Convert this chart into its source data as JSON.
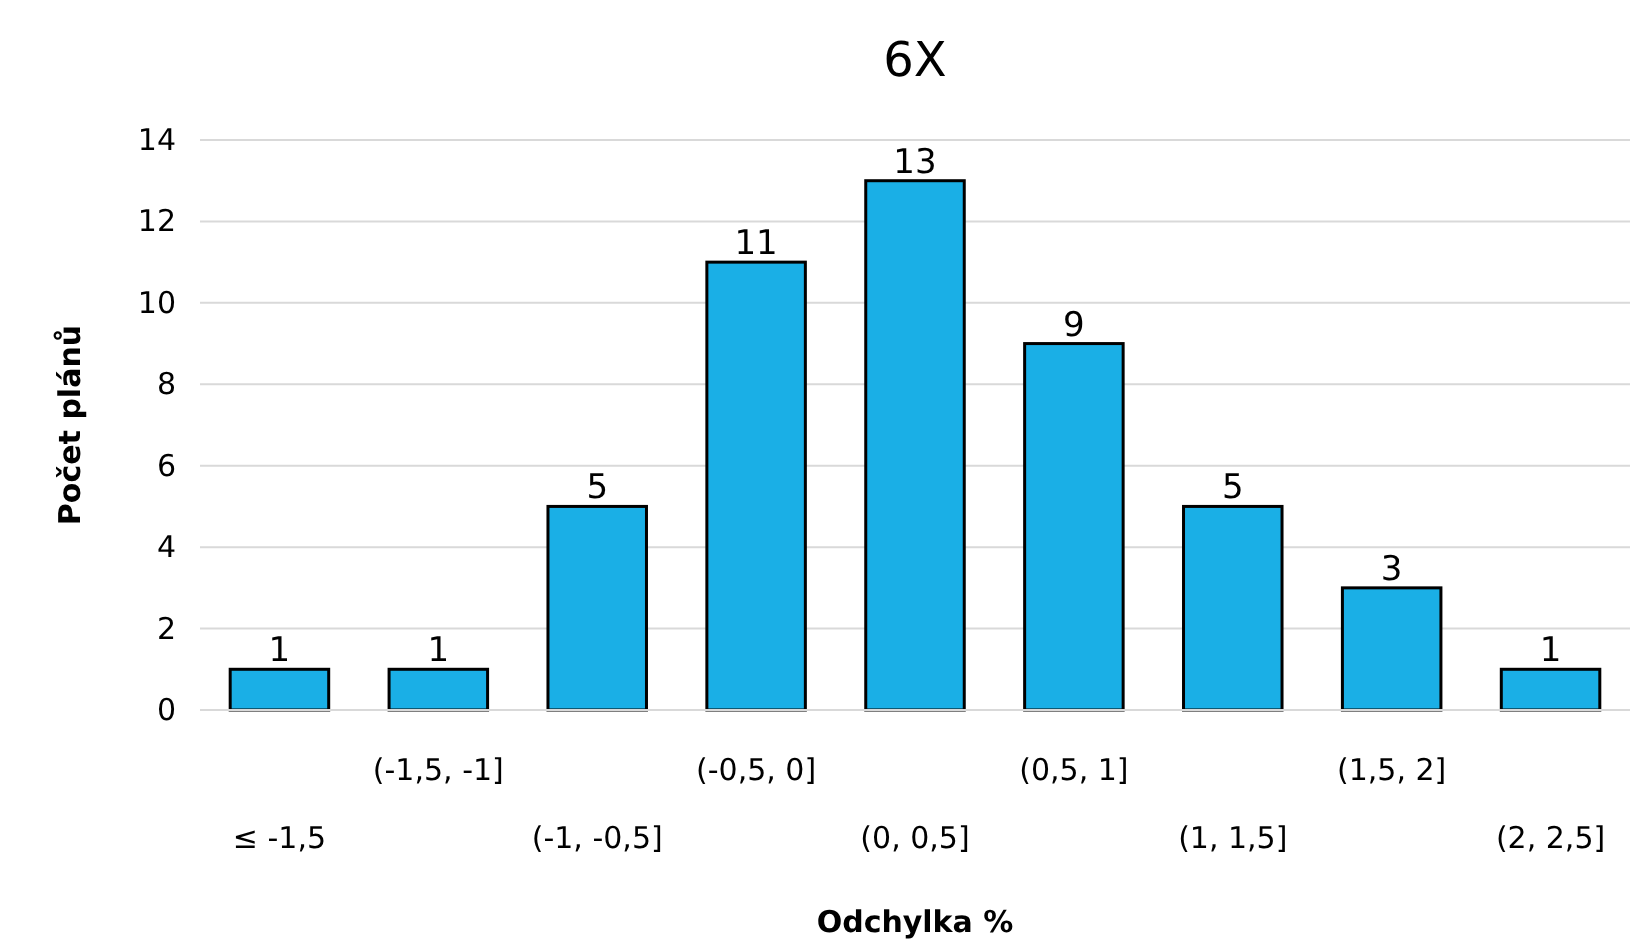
{
  "chart_data": {
    "type": "bar",
    "title": "6X",
    "xlabel": "Odchylka %",
    "ylabel": "Počet plánů",
    "categories": [
      "≤ -1,5",
      "(-1,5, -1]",
      "(-1, -0,5]",
      "(-0,5, 0]",
      "(0, 0,5]",
      "(0,5, 1]",
      "(1, 1,5]",
      "(1,5, 2]",
      "(2, 2,5]"
    ],
    "values": [
      1,
      1,
      5,
      11,
      13,
      9,
      5,
      3,
      1
    ],
    "color": "#1aafe6",
    "ylim": [
      0,
      14
    ],
    "yticks": [
      0,
      2,
      4,
      6,
      8,
      10,
      12,
      14
    ],
    "grid": "y",
    "data_labels": true
  }
}
